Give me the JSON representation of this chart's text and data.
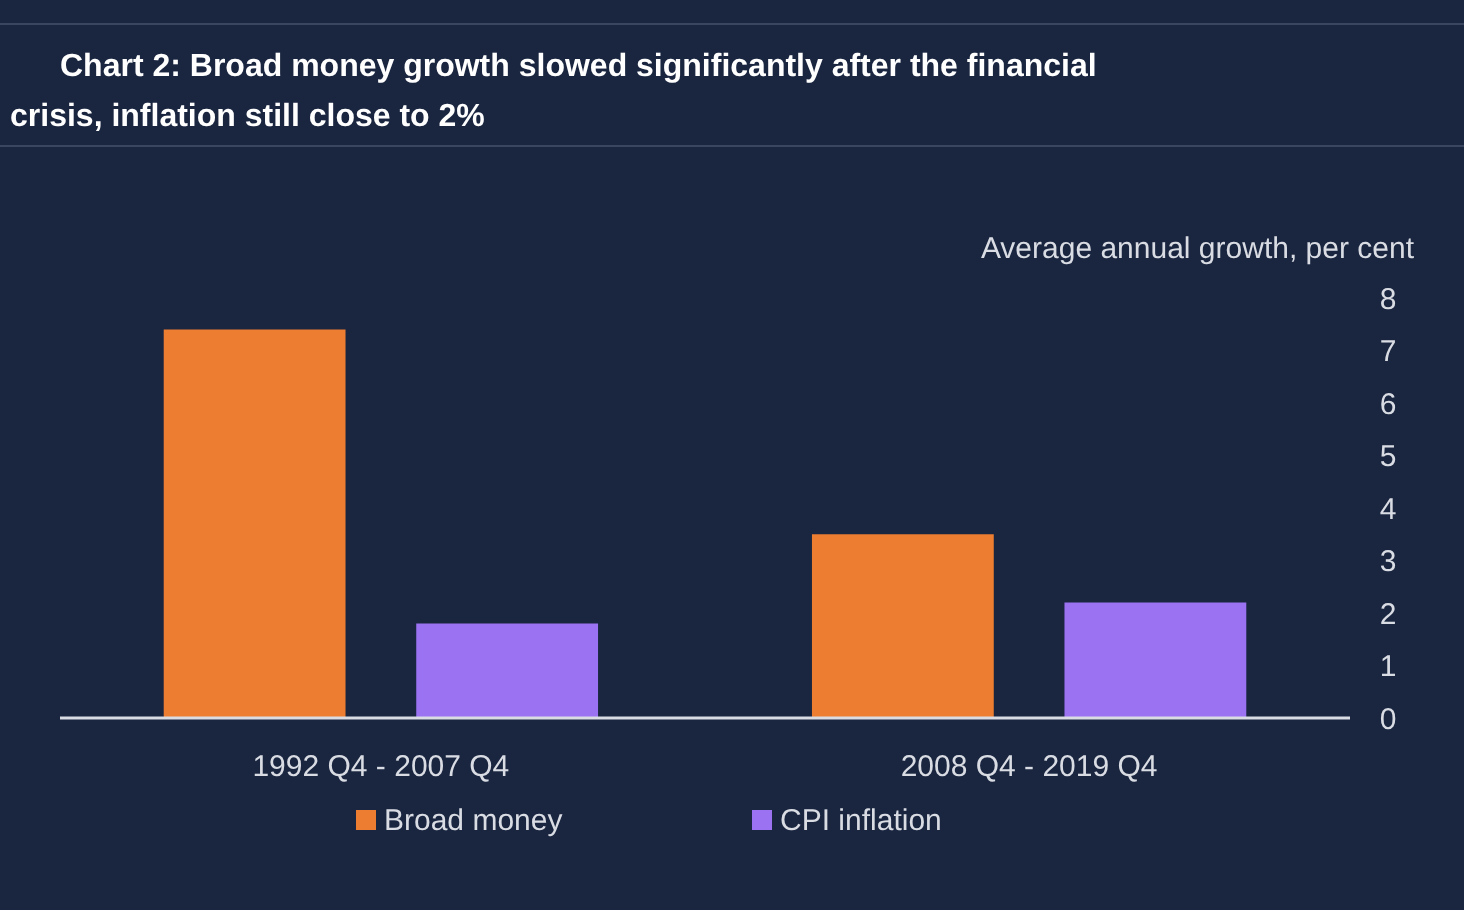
{
  "chart_data": {
    "type": "bar",
    "title": "Chart 2: Broad money growth slowed significantly after the financial crisis, inflation still close to 2%",
    "ylabel": "Average annual growth, per cent",
    "categories": [
      "1992 Q4 - 2007 Q4",
      "2008 Q4 - 2019 Q4"
    ],
    "series": [
      {
        "name": "Broad money",
        "color": "#ed7d31",
        "values": [
          7.4,
          3.5
        ]
      },
      {
        "name": "CPI inflation",
        "color": "#9b72f2",
        "values": [
          1.8,
          2.2
        ]
      }
    ],
    "ylim": [
      0,
      8
    ],
    "yticks": [
      0,
      1,
      2,
      3,
      4,
      5,
      6,
      7,
      8
    ],
    "grid": false,
    "legend": "bottom"
  }
}
